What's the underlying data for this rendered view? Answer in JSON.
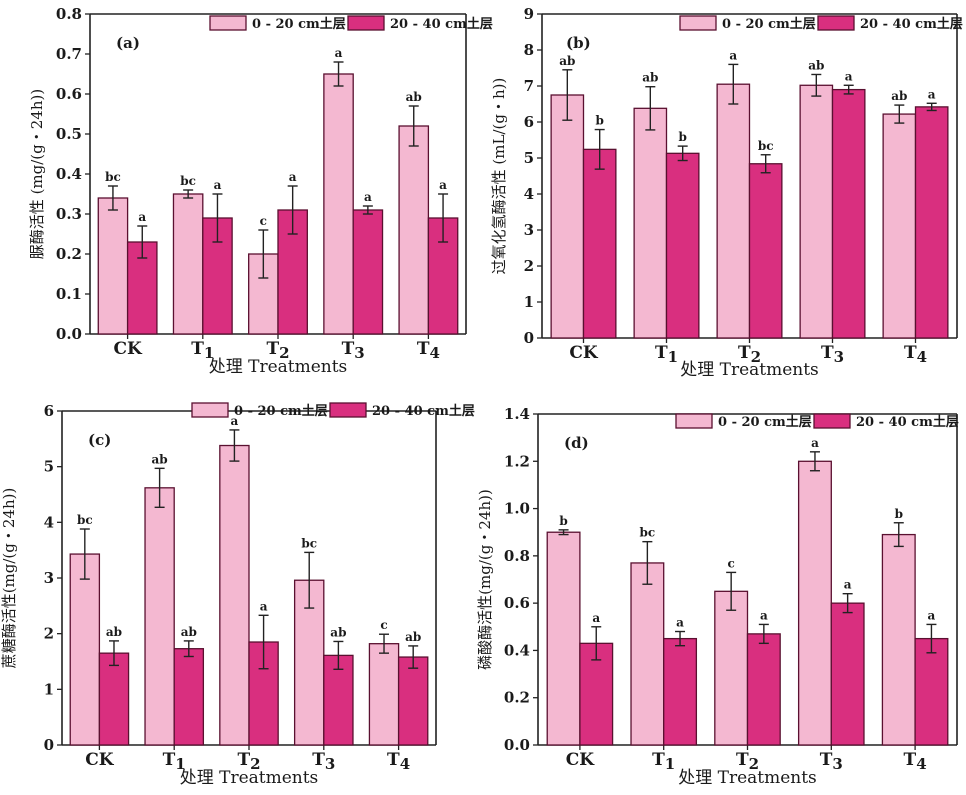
{
  "chart_data": [
    {
      "type": "bar",
      "panel_label": "(a)",
      "categories": [
        "CK",
        "T1",
        "T2",
        "T3",
        "T4"
      ],
      "series": [
        {
          "name": "0 - 20 cm土层",
          "color": "#f4b8d1",
          "values": [
            0.34,
            0.35,
            0.2,
            0.65,
            0.52
          ],
          "errors": [
            0.03,
            0.01,
            0.06,
            0.03,
            0.05
          ],
          "letters": [
            "bc",
            "bc",
            "c",
            "a",
            "ab"
          ]
        },
        {
          "name": "20 - 40 cm土层",
          "color": "#d92f7f",
          "values": [
            0.23,
            0.29,
            0.31,
            0.31,
            0.29
          ],
          "errors": [
            0.04,
            0.06,
            0.06,
            0.01,
            0.06
          ],
          "letters": [
            "a",
            "a",
            "a",
            "a",
            "a"
          ]
        }
      ],
      "xlabel": "处理 Treatments",
      "ylabel": "脲酶活性 (mg/(g・24h))",
      "ylim": [
        0,
        0.8
      ],
      "yticks": [
        "0.0",
        "0.1",
        "0.2",
        "0.3",
        "0.4",
        "0.5",
        "0.6",
        "0.7",
        "0.8"
      ],
      "legend_position": "top-right"
    },
    {
      "type": "bar",
      "panel_label": "(b)",
      "categories": [
        "CK",
        "T1",
        "T2",
        "T3",
        "T4"
      ],
      "series": [
        {
          "name": "0 - 20 cm土层",
          "color": "#f4b8d1",
          "values": [
            6.75,
            6.38,
            7.05,
            7.02,
            6.22
          ],
          "errors": [
            0.7,
            0.6,
            0.55,
            0.3,
            0.25
          ],
          "letters": [
            "ab",
            "ab",
            "a",
            "ab",
            "ab"
          ]
        },
        {
          "name": "20 - 40 cm土层",
          "color": "#d92f7f",
          "values": [
            5.24,
            5.13,
            4.84,
            6.9,
            6.42
          ],
          "errors": [
            0.55,
            0.2,
            0.25,
            0.12,
            0.1
          ],
          "letters": [
            "b",
            "b",
            "bc",
            "a",
            "a"
          ]
        }
      ],
      "xlabel": "处理 Treatments",
      "ylabel": "过氧化氢酶活性 (mL/(g・h))",
      "ylim": [
        0,
        9
      ],
      "yticks": [
        "0",
        "1",
        "2",
        "3",
        "4",
        "5",
        "6",
        "7",
        "8",
        "9"
      ],
      "legend_position": "top-right"
    },
    {
      "type": "bar",
      "panel_label": "(c)",
      "categories": [
        "CK",
        "T1",
        "T2",
        "T3",
        "T4"
      ],
      "series": [
        {
          "name": "0 - 20 cm土层",
          "color": "#f4b8d1",
          "values": [
            3.43,
            4.62,
            5.38,
            2.96,
            1.82
          ],
          "errors": [
            0.45,
            0.35,
            0.28,
            0.5,
            0.17
          ],
          "letters": [
            "bc",
            "ab",
            "a",
            "bc",
            "c"
          ]
        },
        {
          "name": "20 - 40 cm土层",
          "color": "#d92f7f",
          "values": [
            1.65,
            1.73,
            1.85,
            1.61,
            1.58
          ],
          "errors": [
            0.22,
            0.14,
            0.48,
            0.25,
            0.2
          ],
          "letters": [
            "ab",
            "ab",
            "a",
            "ab",
            "ab"
          ]
        }
      ],
      "xlabel": "处理 Treatments",
      "ylabel": "蔗糖酶活性(mg/(g・24h))",
      "ylim": [
        0,
        6
      ],
      "yticks": [
        "0",
        "1",
        "2",
        "3",
        "4",
        "5",
        "6"
      ],
      "legend_position": "top-right"
    },
    {
      "type": "bar",
      "panel_label": "(d)",
      "categories": [
        "CK",
        "T1",
        "T2",
        "T3",
        "T4"
      ],
      "series": [
        {
          "name": "0 - 20 cm土层",
          "color": "#f4b8d1",
          "values": [
            0.9,
            0.77,
            0.65,
            1.2,
            0.89
          ],
          "errors": [
            0.01,
            0.09,
            0.08,
            0.04,
            0.05
          ],
          "letters": [
            "b",
            "bc",
            "c",
            "a",
            "b"
          ]
        },
        {
          "name": "20 - 40 cm土层",
          "color": "#d92f7f",
          "values": [
            0.43,
            0.45,
            0.47,
            0.6,
            0.45
          ],
          "errors": [
            0.07,
            0.03,
            0.04,
            0.04,
            0.06
          ],
          "letters": [
            "a",
            "a",
            "a",
            "a",
            "a"
          ]
        }
      ],
      "xlabel": "处理 Treatments",
      "ylabel": "磷酸酶活性(mg/(g・24h))",
      "ylim": [
        0,
        1.4
      ],
      "yticks": [
        "0.0",
        "0.2",
        "0.4",
        "0.6",
        "0.8",
        "1.0",
        "1.2",
        "1.4"
      ],
      "legend_position": "top-right"
    }
  ]
}
